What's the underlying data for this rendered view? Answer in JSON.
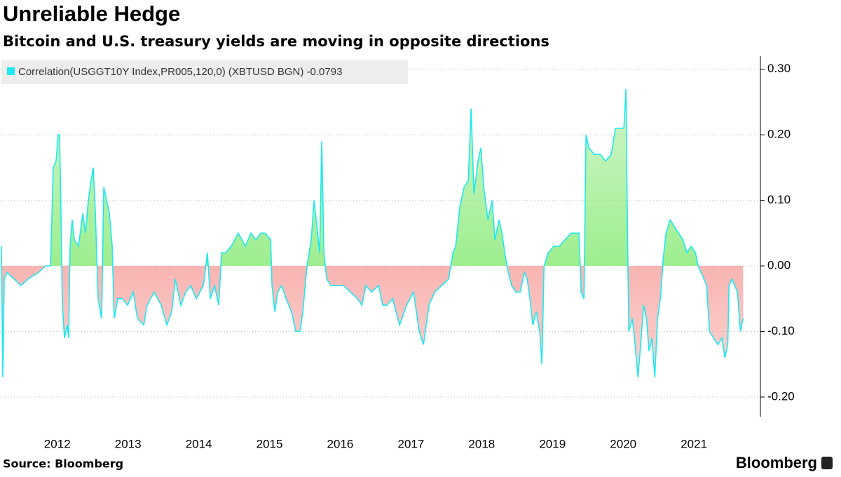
{
  "chart_data": {
    "type": "line",
    "title": "Unreliable Hedge",
    "subtitle": "Bitcoin and U.S. treasury yields are moving in opposite directions",
    "source": "Source: Bloomberg",
    "logo": "Bloomberg",
    "series": [
      {
        "name": "Correlation(USGGT10Y Index,PR005,120,0) (XBTUSD BGN) -0.0793",
        "color": "#1ee8f0",
        "x": [
          2011.71,
          2011.73,
          2011.749,
          2011.789,
          2011.888,
          2011.987,
          2012.086,
          2012.235,
          2012.334,
          2012.404,
          2012.443,
          2012.483,
          2012.513,
          2012.532,
          2012.552,
          2012.572,
          2012.602,
          2012.641,
          2012.661,
          2012.681,
          2012.711,
          2012.741,
          2012.8,
          2012.86,
          2012.899,
          2012.939,
          2012.978,
          2013.008,
          2013.038,
          2013.077,
          2013.127,
          2013.157,
          2013.196,
          2013.236,
          2013.276,
          2013.305,
          2013.355,
          2013.424,
          2013.494,
          2013.573,
          2013.632,
          2013.722,
          2013.771,
          2013.87,
          2013.969,
          2014.049,
          2014.118,
          2014.168,
          2014.247,
          2014.316,
          2014.386,
          2014.465,
          2014.564,
          2014.623,
          2014.663,
          2014.723,
          2014.782,
          2014.822,
          2014.881,
          2014.96,
          2015.06,
          2015.159,
          2015.238,
          2015.307,
          2015.377,
          2015.436,
          2015.516,
          2015.535,
          2015.575,
          2015.615,
          2015.674,
          2015.733,
          2015.813,
          2015.872,
          2015.932,
          2015.971,
          2016.031,
          2016.09,
          2016.13,
          2016.17,
          2016.209,
          2016.239,
          2016.269,
          2016.308,
          2016.368,
          2016.447,
          2016.546,
          2016.645,
          2016.745,
          2016.804,
          2016.863,
          2016.943,
          2017.042,
          2017.101,
          2017.161,
          2017.24,
          2017.339,
          2017.438,
          2017.537,
          2017.617,
          2017.676,
          2017.755,
          2017.835,
          2017.934,
          2018.033,
          2018.092,
          2018.132,
          2018.191,
          2018.251,
          2018.31,
          2018.35,
          2018.39,
          2018.449,
          2018.489,
          2018.528,
          2018.588,
          2018.647,
          2018.687,
          2018.746,
          2018.786,
          2018.826,
          2018.875,
          2018.925,
          2018.984,
          2019.044,
          2019.103,
          2019.143,
          2019.182,
          2019.222,
          2019.272,
          2019.321,
          2019.351,
          2019.381,
          2019.44,
          2019.519,
          2019.599,
          2019.678,
          2019.767,
          2019.876,
          2019.906,
          2019.946,
          2019.975,
          2020.015,
          2020.094,
          2020.173,
          2020.253,
          2020.332,
          2020.391,
          2020.461,
          2020.51,
          2020.54,
          2020.56,
          2020.58,
          2020.629,
          2020.669,
          2020.709,
          2020.748,
          2020.788,
          2020.828,
          2020.867,
          2020.907,
          2020.947,
          2020.986,
          2021.026,
          2021.066,
          2021.105,
          2021.165,
          2021.224,
          2021.284,
          2021.343,
          2021.403,
          2021.462,
          2021.522,
          2021.561,
          2021.601,
          2021.641,
          2021.68,
          2021.72,
          2021.779,
          2021.839,
          2021.898,
          2021.938,
          2021.978,
          2021.997,
          2022.037,
          2022.077,
          2022.116,
          2022.156,
          2022.196
        ],
        "values": [
          0.03,
          -0.17,
          -0.02,
          -0.01,
          -0.02,
          -0.03,
          -0.02,
          -0.01,
          0.0,
          0.0,
          0.15,
          0.16,
          0.2,
          0.2,
          0.08,
          -0.06,
          -0.11,
          -0.09,
          -0.11,
          0.03,
          0.07,
          0.04,
          0.03,
          0.08,
          0.05,
          0.1,
          0.13,
          0.15,
          0.08,
          -0.05,
          -0.08,
          0.12,
          0.1,
          0.08,
          0.03,
          -0.08,
          -0.05,
          -0.05,
          -0.06,
          -0.04,
          -0.08,
          -0.09,
          -0.06,
          -0.04,
          -0.06,
          -0.09,
          -0.07,
          -0.02,
          -0.06,
          -0.04,
          -0.03,
          -0.05,
          -0.03,
          0.02,
          -0.05,
          -0.03,
          -0.06,
          0.02,
          0.02,
          0.03,
          0.05,
          0.03,
          0.05,
          0.04,
          0.05,
          0.05,
          0.04,
          -0.03,
          -0.07,
          -0.04,
          -0.03,
          -0.05,
          -0.07,
          -0.1,
          -0.1,
          -0.07,
          0.0,
          0.04,
          0.1,
          0.06,
          0.02,
          0.19,
          0.02,
          -0.02,
          -0.03,
          -0.03,
          -0.03,
          -0.04,
          -0.05,
          -0.06,
          -0.03,
          -0.04,
          -0.03,
          -0.06,
          -0.06,
          -0.05,
          -0.09,
          -0.06,
          -0.04,
          -0.1,
          -0.12,
          -0.06,
          -0.04,
          -0.03,
          -0.02,
          0.02,
          0.03,
          0.09,
          0.12,
          0.13,
          0.24,
          0.11,
          0.16,
          0.18,
          0.12,
          0.07,
          0.1,
          0.04,
          0.07,
          0.05,
          0.02,
          -0.01,
          -0.03,
          -0.04,
          -0.04,
          -0.01,
          -0.02,
          -0.05,
          -0.09,
          -0.07,
          -0.1,
          -0.15,
          0.0,
          0.02,
          0.03,
          0.03,
          0.04,
          0.05,
          0.05,
          -0.04,
          -0.05,
          0.2,
          0.18,
          0.17,
          0.17,
          0.16,
          0.17,
          0.21,
          0.21,
          0.21,
          0.27,
          0.05,
          -0.1,
          -0.08,
          -0.12,
          -0.17,
          -0.12,
          -0.06,
          -0.08,
          -0.13,
          -0.11,
          -0.17,
          -0.08,
          -0.05,
          0.01,
          0.05,
          0.07,
          0.06,
          0.05,
          0.04,
          0.02,
          0.03,
          0.02,
          0.0,
          -0.01,
          -0.02,
          -0.03,
          -0.1,
          -0.11,
          -0.12,
          -0.11,
          -0.14,
          -0.12,
          -0.03,
          -0.02,
          -0.03,
          -0.04,
          -0.1,
          -0.08
        ]
      }
    ],
    "xlim": [
      2011.69,
      2022.44
    ],
    "xticks": [
      {
        "value": 2012.5,
        "label": "2012"
      },
      {
        "value": 2013.5,
        "label": "2013"
      },
      {
        "value": 2014.5,
        "label": "2014"
      },
      {
        "value": 2015.5,
        "label": "2015"
      },
      {
        "value": 2016.5,
        "label": "2016"
      },
      {
        "value": 2017.5,
        "label": "2017"
      },
      {
        "value": 2018.5,
        "label": "2018"
      },
      {
        "value": 2019.5,
        "label": "2019"
      },
      {
        "value": 2020.5,
        "label": "2020"
      },
      {
        "value": 2021.5,
        "label": "2021"
      }
    ],
    "ylim": [
      -0.23,
      0.32
    ],
    "yticks": [
      {
        "value": 0.3,
        "label": "0.30"
      },
      {
        "value": 0.2,
        "label": "0.20"
      },
      {
        "value": 0.1,
        "label": "0.10"
      },
      {
        "value": 0,
        "label": "0.00"
      },
      {
        "value": -0.1,
        "label": "-0.10"
      },
      {
        "value": -0.2,
        "label": "-0.20"
      }
    ],
    "grid": true,
    "positive_color": "#7de86a",
    "negative_color": "#f4837f"
  }
}
